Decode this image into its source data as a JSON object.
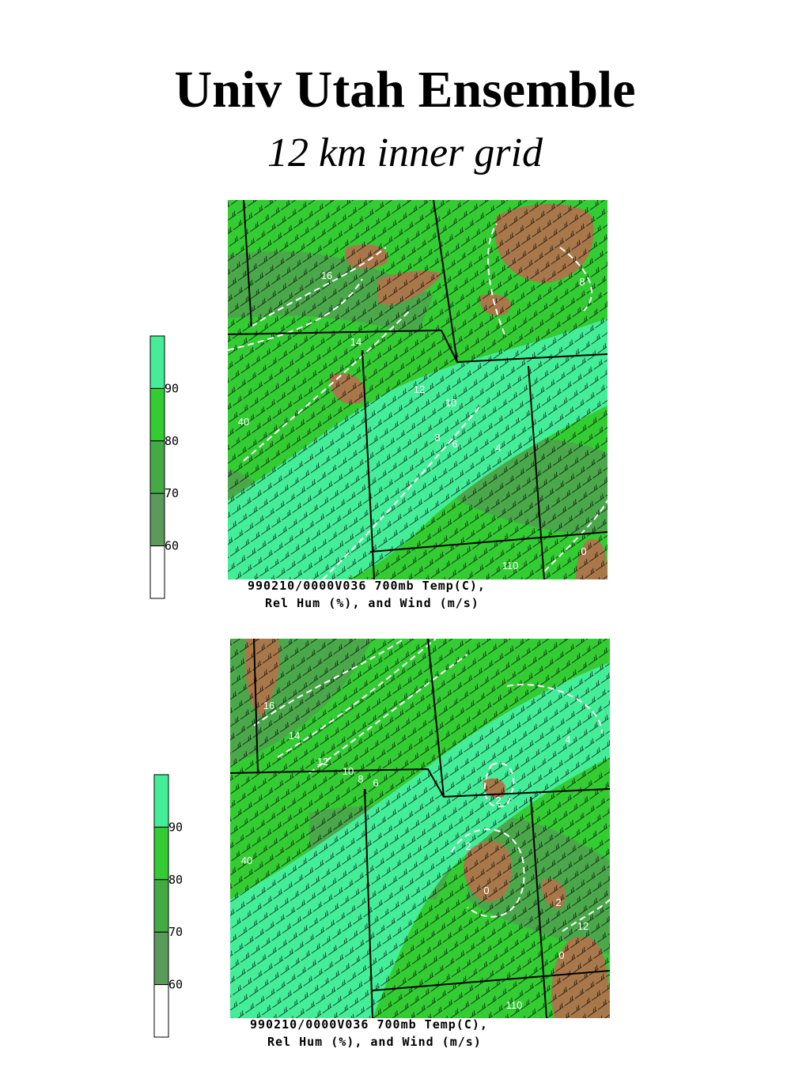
{
  "title": "Univ Utah Ensemble",
  "subtitle": "12 km inner grid",
  "panels": [
    {
      "colorbar_labels": [
        "90",
        "80",
        "70",
        "60"
      ],
      "caption": [
        "990210/0000V036 700mb Temp(C),",
        "Rel Hum (%), and Wind (m/s)"
      ],
      "contour_labels": [
        "16",
        "14",
        "12",
        "10",
        "8",
        "6",
        "4",
        "8",
        "40",
        "110",
        "0"
      ]
    },
    {
      "colorbar_labels": [
        "90",
        "80",
        "70",
        "60"
      ],
      "caption": [
        "990210/0000V036 700mb Temp(C),",
        "Rel Hum (%), and Wind (m/s)"
      ],
      "contour_labels": [
        "16",
        "14",
        "12",
        "10",
        "8",
        "6",
        "2",
        "2",
        "0",
        "2",
        "12",
        "0",
        "40",
        "110",
        "4"
      ]
    }
  ]
}
